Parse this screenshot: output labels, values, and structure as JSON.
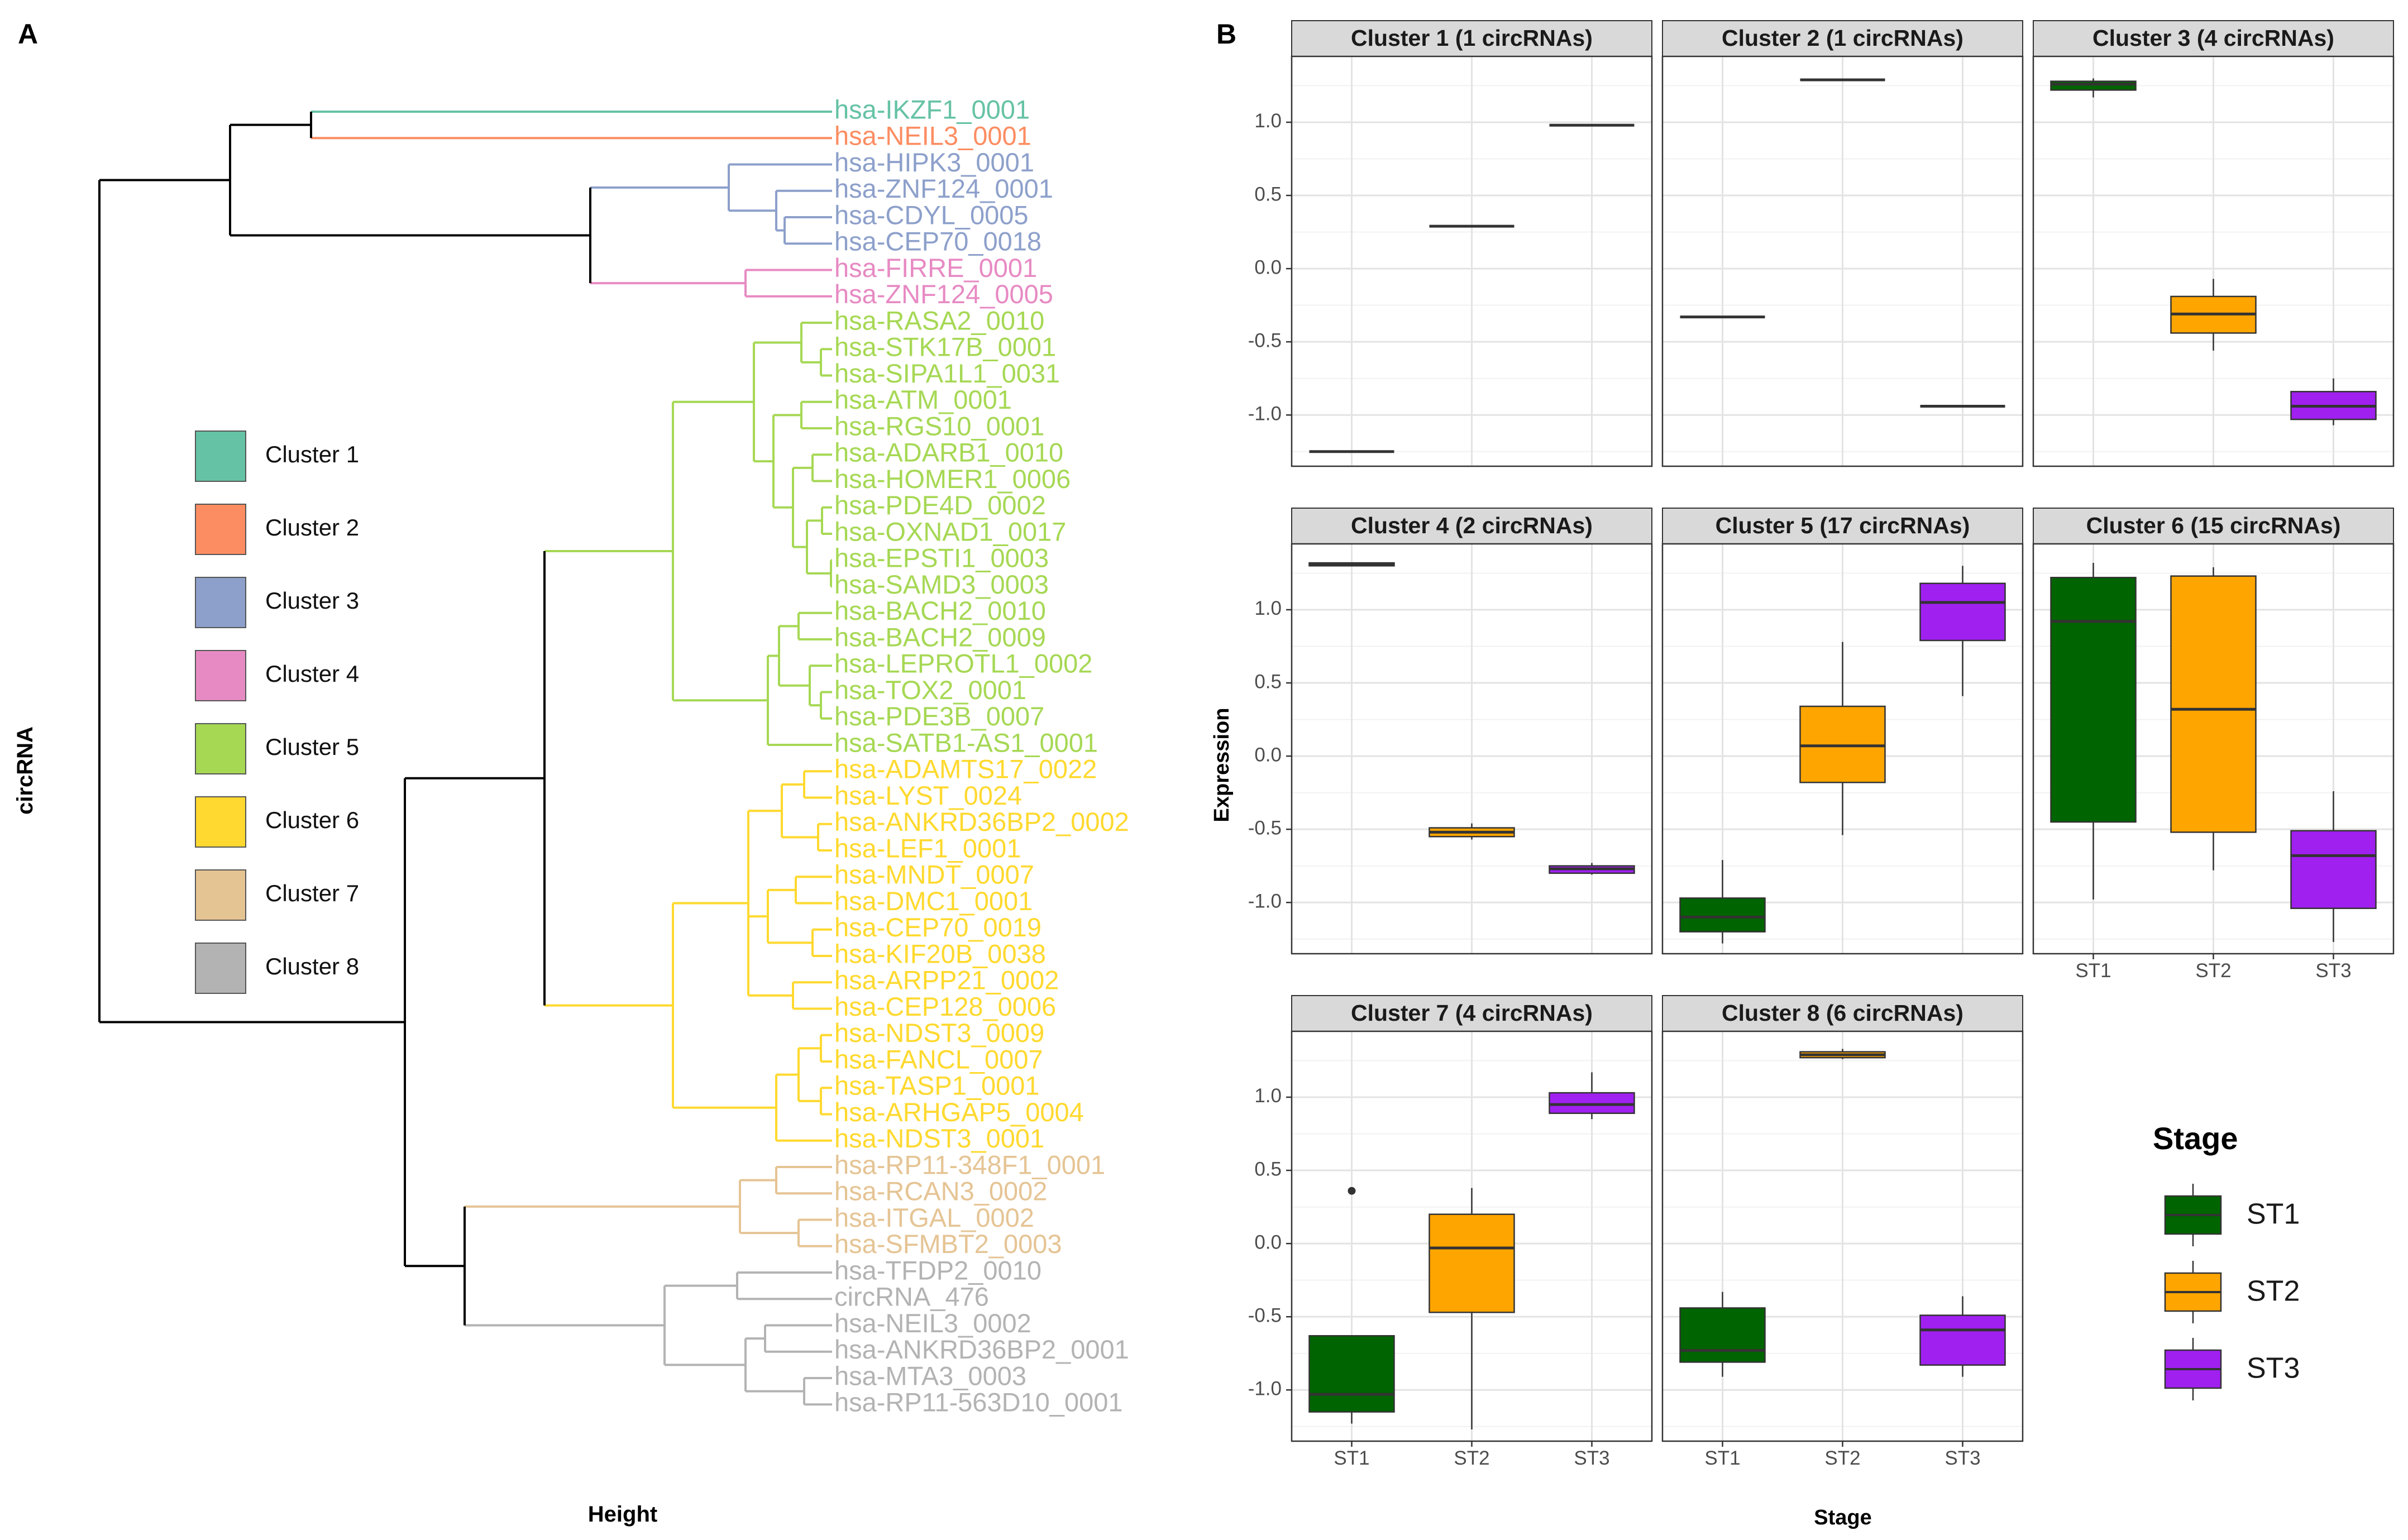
{
  "panel_a": {
    "label": "A",
    "xlabel": "Height",
    "ylabel": "circRNA",
    "legend": [
      {
        "label": "Cluster 1",
        "color": "#66C2A5"
      },
      {
        "label": "Cluster 2",
        "color": "#FC8D62"
      },
      {
        "label": "Cluster 3",
        "color": "#8DA0CB"
      },
      {
        "label": "Cluster 4",
        "color": "#E78AC3"
      },
      {
        "label": "Cluster 5",
        "color": "#A6D854"
      },
      {
        "label": "Cluster 6",
        "color": "#FFD92F"
      },
      {
        "label": "Cluster 7",
        "color": "#E5C494"
      },
      {
        "label": "Cluster 8",
        "color": "#B3B3B3"
      }
    ],
    "leaves": [
      {
        "name": "hsa-IKZF1_0001",
        "cluster": 1
      },
      {
        "name": "hsa-NEIL3_0001",
        "cluster": 2
      },
      {
        "name": "hsa-HIPK3_0001",
        "cluster": 3
      },
      {
        "name": "hsa-ZNF124_0001",
        "cluster": 3
      },
      {
        "name": "hsa-CDYL_0005",
        "cluster": 3
      },
      {
        "name": "hsa-CEP70_0018",
        "cluster": 3
      },
      {
        "name": "hsa-FIRRE_0001",
        "cluster": 4
      },
      {
        "name": "hsa-ZNF124_0005",
        "cluster": 4
      },
      {
        "name": "hsa-RASA2_0010",
        "cluster": 5
      },
      {
        "name": "hsa-STK17B_0001",
        "cluster": 5
      },
      {
        "name": "hsa-SIPA1L1_0031",
        "cluster": 5
      },
      {
        "name": "hsa-ATM_0001",
        "cluster": 5
      },
      {
        "name": "hsa-RGS10_0001",
        "cluster": 5
      },
      {
        "name": "hsa-ADARB1_0010",
        "cluster": 5
      },
      {
        "name": "hsa-HOMER1_0006",
        "cluster": 5
      },
      {
        "name": "hsa-PDE4D_0002",
        "cluster": 5
      },
      {
        "name": "hsa-OXNAD1_0017",
        "cluster": 5
      },
      {
        "name": "hsa-EPSTI1_0003",
        "cluster": 5
      },
      {
        "name": "hsa-SAMD3_0003",
        "cluster": 5
      },
      {
        "name": "hsa-BACH2_0010",
        "cluster": 5
      },
      {
        "name": "hsa-BACH2_0009",
        "cluster": 5
      },
      {
        "name": "hsa-LEPROTL1_0002",
        "cluster": 5
      },
      {
        "name": "hsa-TOX2_0001",
        "cluster": 5
      },
      {
        "name": "hsa-PDE3B_0007",
        "cluster": 5
      },
      {
        "name": "hsa-SATB1-AS1_0001",
        "cluster": 5
      },
      {
        "name": "hsa-ADAMTS17_0022",
        "cluster": 6
      },
      {
        "name": "hsa-LYST_0024",
        "cluster": 6
      },
      {
        "name": "hsa-ANKRD36BP2_0002",
        "cluster": 6
      },
      {
        "name": "hsa-LEF1_0001",
        "cluster": 6
      },
      {
        "name": "hsa-MNDT_0007",
        "cluster": 6
      },
      {
        "name": "hsa-DMC1_0001",
        "cluster": 6
      },
      {
        "name": "hsa-CEP70_0019",
        "cluster": 6
      },
      {
        "name": "hsa-KIF20B_0038",
        "cluster": 6
      },
      {
        "name": "hsa-ARPP21_0002",
        "cluster": 6
      },
      {
        "name": "hsa-CEP128_0006",
        "cluster": 6
      },
      {
        "name": "hsa-NDST3_0009",
        "cluster": 6
      },
      {
        "name": "hsa-FANCL_0007",
        "cluster": 6
      },
      {
        "name": "hsa-TASP1_0001",
        "cluster": 6
      },
      {
        "name": "hsa-ARHGAP5_0004",
        "cluster": 6
      },
      {
        "name": "hsa-NDST3_0001",
        "cluster": 6
      },
      {
        "name": "hsa-RP11-348F1_0001",
        "cluster": 7
      },
      {
        "name": "hsa-RCAN3_0002",
        "cluster": 7
      },
      {
        "name": "hsa-ITGAL_0002",
        "cluster": 7
      },
      {
        "name": "hsa-SFMBT2_0003",
        "cluster": 7
      },
      {
        "name": "hsa-TFDP2_0010",
        "cluster": 8
      },
      {
        "name": "circRNA_476",
        "cluster": 8
      },
      {
        "name": "hsa-NEIL3_0002",
        "cluster": 8
      },
      {
        "name": "hsa-ANKRD36BP2_0001",
        "cluster": 8
      },
      {
        "name": "hsa-MTA3_0003",
        "cluster": 8
      },
      {
        "name": "hsa-RP11-563D10_0001",
        "cluster": 8
      }
    ]
  },
  "panel_b": {
    "label": "B",
    "xlabel": "Stage",
    "ylabel": "Expression",
    "legend_title": "Stage",
    "stage_colors": {
      "ST1": "#006400",
      "ST2": "#FFA500",
      "ST3": "#A020F0"
    }
  },
  "chart_data": {
    "type": "boxplot",
    "categories": [
      "ST1",
      "ST2",
      "ST3"
    ],
    "ylim": [
      -1.35,
      1.45
    ],
    "yticks": [
      -1.0,
      -0.5,
      0.0,
      0.5,
      1.0
    ],
    "ytick_labels": [
      "-1.0",
      "-0.5",
      "0.0",
      "0.5",
      "1.0"
    ],
    "panels": [
      {
        "title": "Cluster 1 (1 circRNAs)",
        "boxes": [
          {
            "stage": "ST1",
            "min": -1.25,
            "q1": -1.25,
            "median": -1.25,
            "q3": -1.25,
            "max": -1.25
          },
          {
            "stage": "ST2",
            "min": 0.29,
            "q1": 0.29,
            "median": 0.29,
            "q3": 0.29,
            "max": 0.29
          },
          {
            "stage": "ST3",
            "min": 0.98,
            "q1": 0.98,
            "median": 0.98,
            "q3": 0.98,
            "max": 0.98
          }
        ]
      },
      {
        "title": "Cluster 2 (1 circRNAs)",
        "boxes": [
          {
            "stage": "ST1",
            "min": -0.33,
            "q1": -0.33,
            "median": -0.33,
            "q3": -0.33,
            "max": -0.33
          },
          {
            "stage": "ST2",
            "min": 1.29,
            "q1": 1.29,
            "median": 1.29,
            "q3": 1.29,
            "max": 1.29
          },
          {
            "stage": "ST3",
            "min": -0.94,
            "q1": -0.94,
            "median": -0.94,
            "q3": -0.94,
            "max": -0.94
          }
        ]
      },
      {
        "title": "Cluster 3 (4 circRNAs)",
        "boxes": [
          {
            "stage": "ST1",
            "min": 1.17,
            "q1": 1.22,
            "median": 1.26,
            "q3": 1.28,
            "max": 1.3
          },
          {
            "stage": "ST2",
            "min": -0.56,
            "q1": -0.44,
            "median": -0.31,
            "q3": -0.19,
            "max": -0.07
          },
          {
            "stage": "ST3",
            "min": -1.07,
            "q1": -1.03,
            "median": -0.94,
            "q3": -0.84,
            "max": -0.75
          }
        ]
      },
      {
        "title": "Cluster 4 (2 circRNAs)",
        "boxes": [
          {
            "stage": "ST1",
            "min": 1.3,
            "q1": 1.3,
            "median": 1.31,
            "q3": 1.32,
            "max": 1.32
          },
          {
            "stage": "ST2",
            "min": -0.57,
            "q1": -0.55,
            "median": -0.52,
            "q3": -0.49,
            "max": -0.46
          },
          {
            "stage": "ST3",
            "min": -0.81,
            "q1": -0.8,
            "median": -0.77,
            "q3": -0.75,
            "max": -0.73
          }
        ]
      },
      {
        "title": "Cluster 5 (17 circRNAs)",
        "boxes": [
          {
            "stage": "ST1",
            "min": -1.28,
            "q1": -1.2,
            "median": -1.1,
            "q3": -0.97,
            "max": -0.71
          },
          {
            "stage": "ST2",
            "min": -0.54,
            "q1": -0.18,
            "median": 0.07,
            "q3": 0.34,
            "max": 0.78
          },
          {
            "stage": "ST3",
            "min": 0.41,
            "q1": 0.79,
            "median": 1.05,
            "q3": 1.18,
            "max": 1.3
          }
        ]
      },
      {
        "title": "Cluster 6 (15 circRNAs)",
        "boxes": [
          {
            "stage": "ST1",
            "min": -0.98,
            "q1": -0.45,
            "median": 0.92,
            "q3": 1.22,
            "max": 1.32
          },
          {
            "stage": "ST2",
            "min": -0.78,
            "q1": -0.52,
            "median": 0.32,
            "q3": 1.23,
            "max": 1.29
          },
          {
            "stage": "ST3",
            "min": -1.27,
            "q1": -1.04,
            "median": -0.68,
            "q3": -0.51,
            "max": -0.24
          }
        ]
      },
      {
        "title": "Cluster 7 (4 circRNAs)",
        "boxes": [
          {
            "stage": "ST1",
            "min": -1.23,
            "q1": -1.15,
            "median": -1.03,
            "q3": -0.63,
            "max": -0.63,
            "outliers": [
              0.36
            ]
          },
          {
            "stage": "ST2",
            "min": -1.27,
            "q1": -0.47,
            "median": -0.03,
            "q3": 0.2,
            "max": 0.38
          },
          {
            "stage": "ST3",
            "min": 0.85,
            "q1": 0.89,
            "median": 0.95,
            "q3": 1.03,
            "max": 1.17
          }
        ]
      },
      {
        "title": "Cluster 8 (6 circRNAs)",
        "boxes": [
          {
            "stage": "ST1",
            "min": -0.91,
            "q1": -0.81,
            "median": -0.73,
            "q3": -0.44,
            "max": -0.33
          },
          {
            "stage": "ST2",
            "min": 1.26,
            "q1": 1.27,
            "median": 1.29,
            "q3": 1.31,
            "max": 1.33
          },
          {
            "stage": "ST3",
            "min": -0.91,
            "q1": -0.83,
            "median": -0.59,
            "q3": -0.49,
            "max": -0.36
          }
        ]
      }
    ]
  }
}
